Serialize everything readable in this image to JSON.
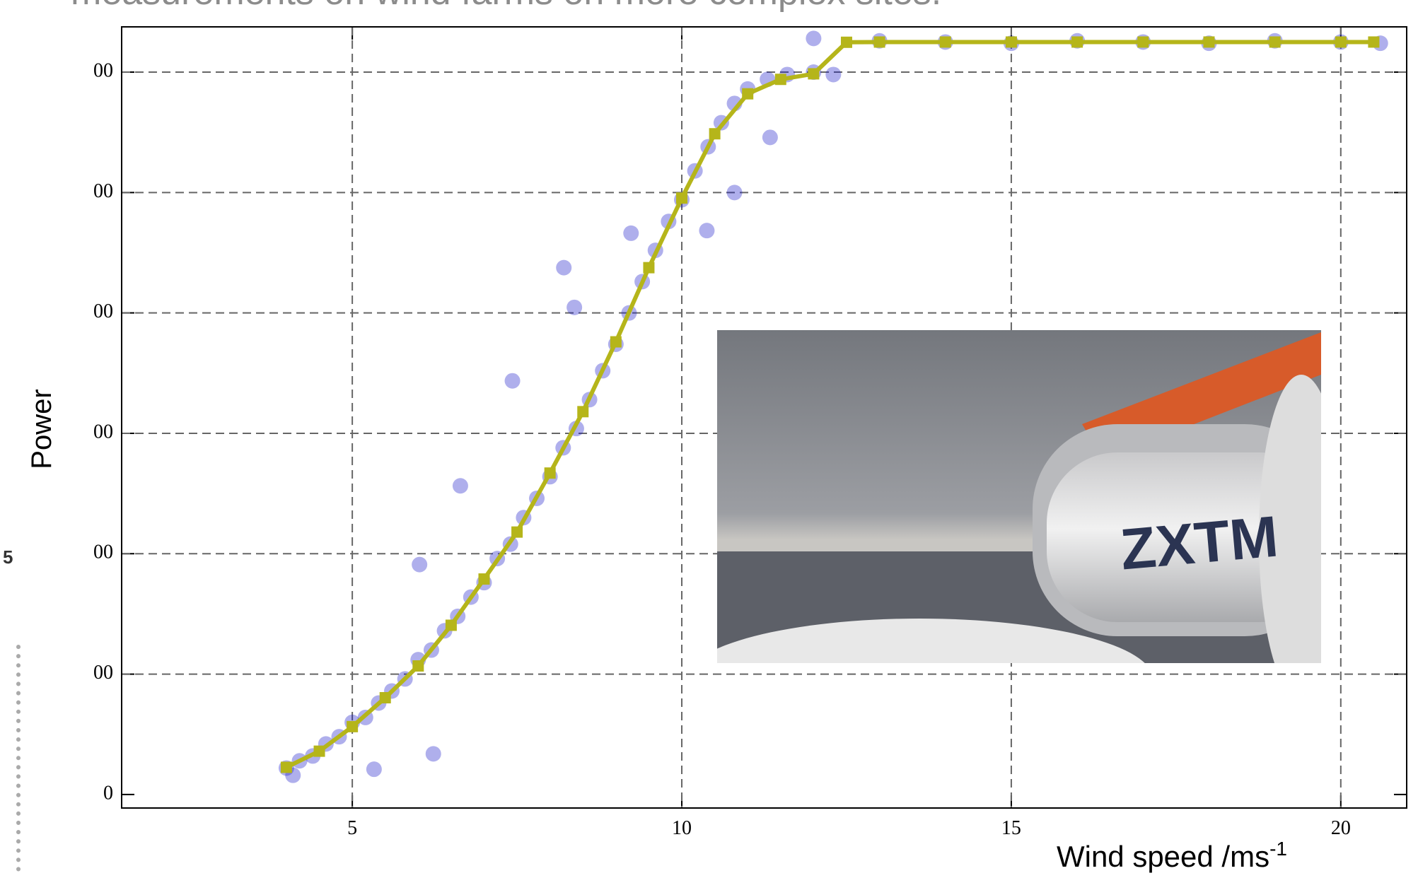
{
  "slide": {
    "heading": "measurements on wind farms on more complex sites.",
    "page_number": "5"
  },
  "photo": {
    "logo": "ZXTM"
  },
  "chart_data": {
    "type": "scatter",
    "y_label": "Power",
    "x_label": {
      "text": "Wind speed /ms",
      "sup": "-1"
    },
    "xlim": [
      1.5,
      21
    ],
    "ylim": [
      -56,
      3188
    ],
    "xticks": [
      5,
      10,
      15,
      20
    ],
    "yticks": [
      0,
      {
        "value": 500,
        "label": "00"
      },
      {
        "value": 1000,
        "label": "00"
      },
      {
        "value": 1500,
        "label": "00"
      },
      {
        "value": 2000,
        "label": "00"
      },
      {
        "value": 2500,
        "label": "00"
      },
      {
        "value": 3000,
        "label": "00"
      }
    ],
    "grid": true,
    "measured": {
      "color": "#1a1ac8",
      "x": [
        4.0,
        4.1,
        4.2,
        4.4,
        4.6,
        4.8,
        5.0,
        5.2,
        5.4,
        5.6,
        5.8,
        6.0,
        6.2,
        6.4,
        6.6,
        6.8,
        7.0,
        7.2,
        7.4,
        7.6,
        7.8,
        8.0,
        8.2,
        8.4,
        8.6,
        8.8,
        9.0,
        9.2,
        9.4,
        9.6,
        9.8,
        10.0,
        10.2,
        10.4,
        10.6,
        10.8,
        11.0,
        11.3,
        11.6,
        12.0,
        12.3,
        8.21,
        7.43,
        6.64,
        6.02,
        6.23,
        5.33,
        10.38,
        11.34,
        8.37,
        9.23,
        10.8,
        12.0,
        13.0,
        14.0,
        15.0,
        16.0,
        17.0,
        18.0,
        19.0,
        20.0,
        20.6
      ],
      "values": [
        110,
        80,
        140,
        160,
        210,
        240,
        300,
        320,
        380,
        430,
        480,
        560,
        600,
        680,
        740,
        820,
        880,
        980,
        1040,
        1150,
        1230,
        1320,
        1440,
        1520,
        1640,
        1760,
        1870,
        2000,
        2130,
        2260,
        2380,
        2470,
        2590,
        2690,
        2790,
        2870,
        2930,
        2970,
        2990,
        3000,
        2990,
        2188,
        1718,
        1282,
        955,
        169,
        105,
        2342,
        2729,
        2023,
        2331,
        2500,
        3140,
        3130,
        3125,
        3120,
        3130,
        3125,
        3120,
        3130,
        3125,
        3120
      ]
    },
    "binned": {
      "color": "#b5b51a",
      "x": [
        4,
        4.5,
        5,
        5.5,
        6,
        6.5,
        7,
        7.5,
        8,
        8.5,
        9,
        9.5,
        10,
        10.5,
        11,
        11.5,
        12,
        12.5,
        13,
        14,
        15,
        16,
        17,
        18,
        19,
        20,
        20.5
      ],
      "values": [
        113,
        180,
        282,
        402,
        534,
        703,
        895,
        1090,
        1335,
        1590,
        1880,
        2188,
        2477,
        2744,
        2910,
        2970,
        2993,
        3124,
        3125,
        3125,
        3125,
        3125,
        3125,
        3125,
        3125,
        3125,
        3125
      ]
    }
  }
}
